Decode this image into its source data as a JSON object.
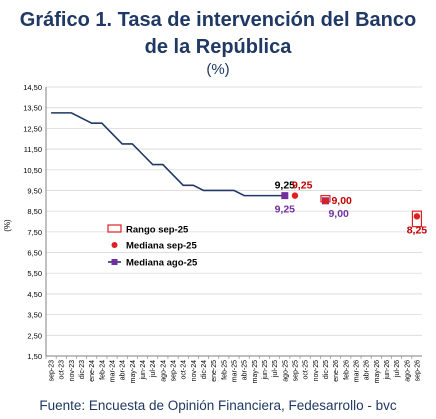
{
  "header": {
    "title_line1": "Gráfico 1. Tasa de intervención del Banco",
    "title_line2": "de la República",
    "subtitle": "(%)"
  },
  "footer": {
    "source": "Fuente: Encuesta de Opinión Financiera, Fedesarrollo - bvc"
  },
  "colors": {
    "history_line": "#1f3864",
    "mediana_ago": "#7030a0",
    "mediana_sep": "#e02020",
    "rango_sep_border": "#e02020",
    "grid": "#d9d9d9",
    "axis": "#808080",
    "label_dark": "#000000",
    "label_red": "#c00000",
    "label_purple": "#7030a0"
  },
  "chart_data": {
    "type": "line",
    "ylabel": "(%)",
    "xlabel": "",
    "ylim": [
      1.5,
      14.5
    ],
    "yticks": [
      "1,50",
      "2,50",
      "3,50",
      "4,50",
      "5,50",
      "6,50",
      "7,50",
      "8,50",
      "9,50",
      "10,50",
      "11,50",
      "12,50",
      "13,50",
      "14,50"
    ],
    "ytick_values": [
      1.5,
      2.5,
      3.5,
      4.5,
      5.5,
      6.5,
      7.5,
      8.5,
      9.5,
      10.5,
      11.5,
      12.5,
      13.5,
      14.5
    ],
    "grid": true,
    "categories": [
      "sep-23",
      "oct-23",
      "nov-23",
      "dic-23",
      "ene-24",
      "feb-24",
      "mar-24",
      "abr-24",
      "may-24",
      "jun-24",
      "jul-24",
      "ago-24",
      "sep-24",
      "oct-24",
      "nov-24",
      "dic-24",
      "ene-25",
      "feb-25",
      "mar-25",
      "abr-25",
      "may-25",
      "jun-25",
      "jul-25",
      "ago-25",
      "sep-25",
      "oct-25",
      "nov-25",
      "dic-25",
      "ene-26",
      "feb-26",
      "mar-26",
      "abr-26",
      "may-26",
      "jun-26",
      "jul-26",
      "ago-26",
      "sep-26"
    ],
    "legend": {
      "placement": "center-left",
      "entries": [
        {
          "name": "Rango sep-25",
          "marker": "rect"
        },
        {
          "name": "Mediana sep-25",
          "marker": "dot"
        },
        {
          "name": "Mediana ago-25",
          "marker": "line-square"
        }
      ]
    },
    "series": [
      {
        "name": "Mediana ago-25",
        "kind": "line",
        "x": [
          "sep-23",
          "oct-23",
          "nov-23",
          "dic-23",
          "ene-24",
          "feb-24",
          "mar-24",
          "abr-24",
          "may-24",
          "jun-24",
          "jul-24",
          "ago-24",
          "sep-24",
          "oct-24",
          "nov-24",
          "dic-24",
          "ene-25",
          "feb-25",
          "mar-25",
          "abr-25",
          "may-25",
          "jun-25",
          "jul-25",
          "ago-25"
        ],
        "values": [
          13.25,
          13.25,
          13.25,
          13.0,
          12.75,
          12.75,
          12.25,
          11.75,
          11.75,
          11.25,
          10.75,
          10.75,
          10.25,
          9.75,
          9.75,
          9.5,
          9.5,
          9.5,
          9.5,
          9.25,
          9.25,
          9.25,
          9.25,
          9.25
        ],
        "square_markers": [
          {
            "x": "ago-25",
            "y": 9.25
          },
          {
            "x": "dic-25",
            "y": 9.0
          }
        ]
      },
      {
        "name": "Mediana sep-25",
        "kind": "dot",
        "points": [
          {
            "x": "sep-25",
            "y": 9.25
          },
          {
            "x": "dic-25",
            "y": 9.0
          },
          {
            "x": "sep-26",
            "y": 8.25
          }
        ]
      },
      {
        "name": "Rango sep-25",
        "kind": "range",
        "ranges": [
          {
            "x": "dic-25",
            "low": 8.95,
            "high": 9.25
          },
          {
            "x": "sep-26",
            "low": 7.75,
            "high": 8.5
          }
        ]
      }
    ],
    "annotations": [
      {
        "text": "9,25",
        "x": "ago-25",
        "y": 9.25,
        "pos": "above",
        "color": "dark"
      },
      {
        "text": "9,25",
        "x": "ago-25",
        "y": 9.25,
        "pos": "below",
        "color": "purple"
      },
      {
        "text": "9,25",
        "x": "sep-25",
        "y": 9.25,
        "pos": "above-right",
        "color": "red"
      },
      {
        "text": "9,00",
        "x": "dic-25",
        "y": 9.0,
        "pos": "right",
        "color": "red"
      },
      {
        "text": "9,00",
        "x": "dic-25",
        "y": 9.0,
        "pos": "below-right",
        "color": "purple"
      },
      {
        "text": "8,25",
        "x": "sep-26",
        "y": 8.25,
        "pos": "below",
        "color": "red"
      }
    ]
  }
}
